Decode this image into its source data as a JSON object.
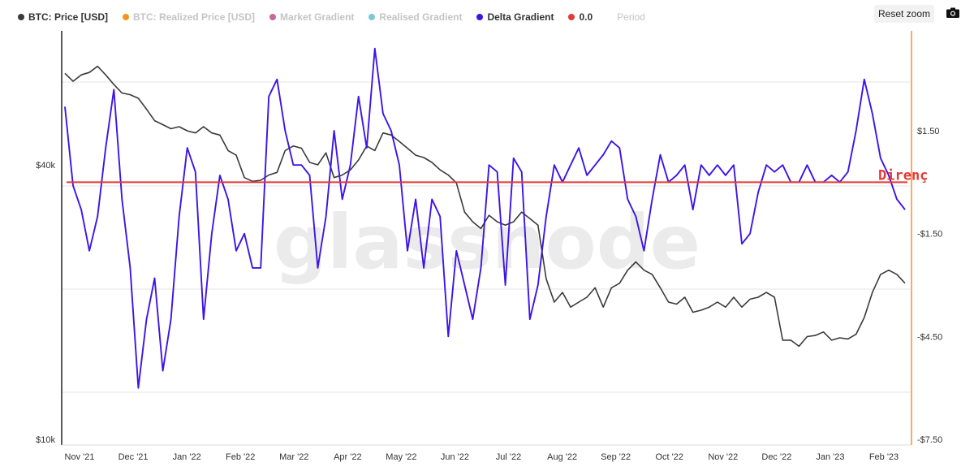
{
  "legend": {
    "items": [
      {
        "label": "BTC: Price [USD]",
        "color": "#3a3a3a",
        "active": true
      },
      {
        "label": "BTC: Realized Price [USD]",
        "color": "#f7931a",
        "active": false
      },
      {
        "label": "Market Gradient",
        "color": "#c8689c",
        "active": false
      },
      {
        "label": "Realised Gradient",
        "color": "#7cc8d4",
        "active": false
      },
      {
        "label": "Delta Gradient",
        "color": "#3d14e8",
        "active": true
      },
      {
        "label": "0.0",
        "color": "#e53935",
        "active": true
      }
    ],
    "period_label": "Period"
  },
  "toolbar": {
    "reset_zoom_label": "Reset zoom",
    "camera_icon": "camera-icon"
  },
  "watermark": "glassnode",
  "annotation": "Direnç",
  "chart_data": {
    "type": "line",
    "x_ticks": [
      "Nov '21",
      "Dec '21",
      "Jan '22",
      "Feb '22",
      "Mar '22",
      "Apr '22",
      "May '22",
      "Jun '22",
      "Jul '22",
      "Aug '22",
      "Sep '22",
      "Oct '22",
      "Nov '22",
      "Dec '22",
      "Jan '23",
      "Feb '23"
    ],
    "left_axis": {
      "ticks": [
        "$40k",
        "$10k"
      ],
      "scale": "log"
    },
    "right_axis": {
      "ticks": [
        "$1.50",
        "-$1.50",
        "-$4.50",
        "-$7.50"
      ],
      "range": [
        -7.5,
        4.5
      ]
    },
    "reference_line": {
      "name": "0.0",
      "value": 0.0,
      "color": "#e53935"
    },
    "series": [
      {
        "name": "BTC: Price [USD]",
        "color": "#3a3a3a",
        "axis": "left",
        "values": [
          63500,
          61000,
          63000,
          63800,
          65800,
          63000,
          60000,
          57500,
          57000,
          56000,
          53000,
          50000,
          49000,
          48000,
          48500,
          47500,
          47000,
          48500,
          47000,
          46500,
          43000,
          42000,
          37500,
          36800,
          37000,
          38000,
          38500,
          43000,
          44000,
          43500,
          40500,
          40000,
          42500,
          37500,
          38000,
          39000,
          41000,
          44000,
          43000,
          47000,
          46500,
          45000,
          43500,
          42000,
          41500,
          40500,
          39000,
          38000,
          36500,
          31500,
          30000,
          29000,
          31000,
          30000,
          29500,
          30000,
          31500,
          30500,
          29500,
          22500,
          20000,
          21000,
          19500,
          20000,
          20500,
          21500,
          19500,
          21500,
          22000,
          23500,
          24500,
          23500,
          23000,
          21500,
          20000,
          19800,
          20500,
          19000,
          19200,
          19500,
          20000,
          19500,
          20500,
          19500,
          20300,
          20500,
          21000,
          20500,
          16500,
          16500,
          16000,
          16800,
          16900,
          17200,
          16500,
          16700,
          16600,
          17000,
          18500,
          21000,
          23000,
          23500,
          23000,
          22000
        ]
      },
      {
        "name": "Delta Gradient",
        "color": "#3d14e8",
        "axis": "right",
        "values": [
          2.2,
          -0.1,
          -0.8,
          -2.0,
          -1.0,
          1.0,
          2.7,
          -0.5,
          -2.5,
          -6.0,
          -4.0,
          -2.8,
          -5.5,
          -4.0,
          -1.0,
          1.0,
          0.3,
          -4.0,
          -1.5,
          0.2,
          -0.5,
          -2.0,
          -1.5,
          -2.5,
          -2.5,
          2.5,
          3.0,
          1.5,
          0.5,
          0.5,
          0.2,
          -2.5,
          -1.0,
          1.5,
          -0.5,
          0.5,
          2.5,
          1.0,
          3.9,
          2.0,
          1.5,
          0.5,
          -2.0,
          -0.5,
          -2.5,
          -0.5,
          -1.0,
          -4.5,
          -2.0,
          -3.0,
          -4.0,
          -2.5,
          0.5,
          0.3,
          -3.0,
          0.7,
          0.3,
          -4.0,
          -3.0,
          -1.0,
          0.5,
          0.0,
          0.5,
          1.0,
          0.2,
          0.5,
          0.8,
          1.2,
          1.0,
          -0.5,
          -1.0,
          -2.0,
          -0.5,
          0.8,
          0.0,
          0.2,
          0.5,
          -0.8,
          0.5,
          0.2,
          0.5,
          0.2,
          0.5,
          -1.8,
          -1.5,
          -0.3,
          0.5,
          0.3,
          0.5,
          0.0,
          0.0,
          0.5,
          0.0,
          0.0,
          0.2,
          0.0,
          0.3,
          1.5,
          3.0,
          2.0,
          0.7,
          0.2,
          -0.5,
          -0.8
        ]
      }
    ]
  }
}
